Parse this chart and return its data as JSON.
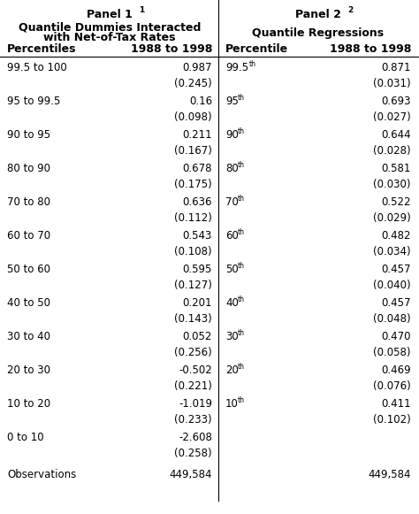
{
  "panel1_header": "Panel 1",
  "panel1_superscript": "1",
  "panel1_subheader_line1": "Quantile Dummies Interacted",
  "panel1_subheader_line2": "with Net-of-Tax Rates",
  "panel1_col1": "Percentiles",
  "panel1_col2": "1988 to 1998",
  "panel2_header": "Panel 2",
  "panel2_superscript": "2",
  "panel2_subheader": "Quantile Regressions",
  "panel2_col1": "Percentile",
  "panel2_col2": "1988 to 1998",
  "panel1_rows": [
    {
      "label": "99.5 to 100",
      "value": "0.987",
      "se": "(0.245)"
    },
    {
      "label": "95 to 99.5",
      "value": "0.16",
      "se": "(0.098)"
    },
    {
      "label": "90 to 95",
      "value": "0.211",
      "se": "(0.167)"
    },
    {
      "label": "80 to 90",
      "value": "0.678",
      "se": "(0.175)"
    },
    {
      "label": "70 to 80",
      "value": "0.636",
      "se": "(0.112)"
    },
    {
      "label": "60 to 70",
      "value": "0.543",
      "se": "(0.108)"
    },
    {
      "label": "50 to 60",
      "value": "0.595",
      "se": "(0.127)"
    },
    {
      "label": "40 to 50",
      "value": "0.201",
      "se": "(0.143)"
    },
    {
      "label": "30 to 40",
      "value": "0.052",
      "se": "(0.256)"
    },
    {
      "label": "20 to 30",
      "value": "-0.502",
      "se": "(0.221)"
    },
    {
      "label": "10 to 20",
      "value": "-1.019",
      "se": "(0.233)"
    },
    {
      "label": "0 to 10",
      "value": "-2.608",
      "se": "(0.258)"
    }
  ],
  "panel2_rows": [
    {
      "label": "99.5",
      "sup": "th",
      "value": "0.871",
      "se": "(0.031)"
    },
    {
      "label": "95",
      "sup": "th",
      "value": "0.693",
      "se": "(0.027)"
    },
    {
      "label": "90",
      "sup": "th",
      "value": "0.644",
      "se": "(0.028)"
    },
    {
      "label": "80",
      "sup": "th",
      "value": "0.581",
      "se": "(0.030)"
    },
    {
      "label": "70",
      "sup": "th",
      "value": "0.522",
      "se": "(0.029)"
    },
    {
      "label": "60",
      "sup": "th",
      "value": "0.482",
      "se": "(0.034)"
    },
    {
      "label": "50",
      "sup": "th",
      "value": "0.457",
      "se": "(0.040)"
    },
    {
      "label": "40",
      "sup": "th",
      "value": "0.457",
      "se": "(0.048)"
    },
    {
      "label": "30",
      "sup": "th",
      "value": "0.470",
      "se": "(0.058)"
    },
    {
      "label": "20",
      "sup": "th",
      "value": "0.469",
      "se": "(0.076)"
    },
    {
      "label": "10",
      "sup": "th",
      "value": "0.411",
      "se": "(0.102)"
    }
  ],
  "observations": "449,584",
  "bg_color": "#ffffff",
  "text_color": "#000000",
  "font_size": 8.5,
  "bold_font_size": 9.0
}
